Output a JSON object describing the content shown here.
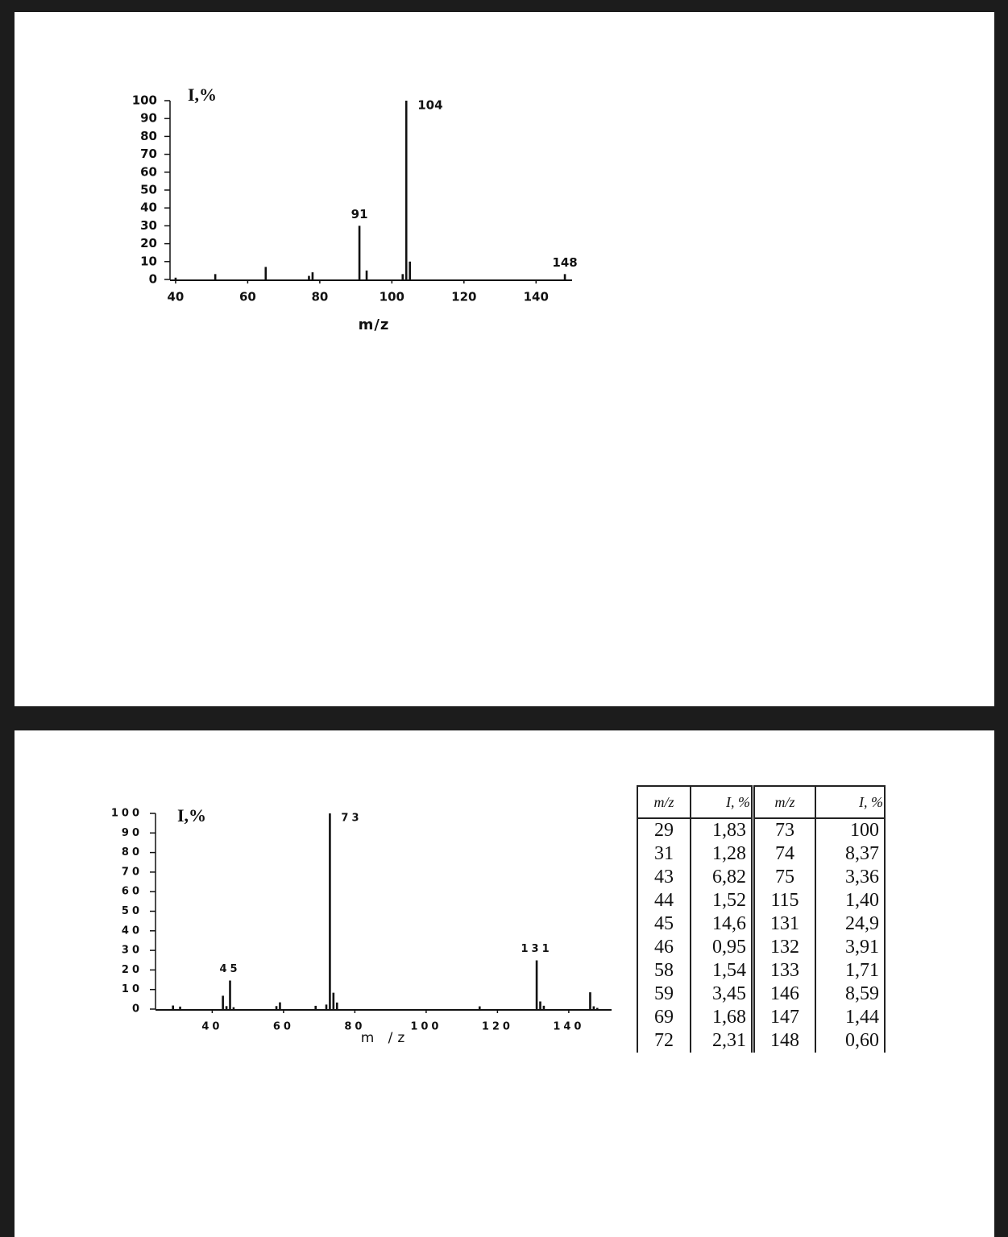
{
  "chart_data": [
    {
      "type": "bar",
      "y_label": "I,%",
      "x_label": "m/z",
      "x": [
        40,
        51,
        65,
        77,
        78,
        91,
        93,
        103,
        104,
        105,
        148
      ],
      "values": [
        1,
        3,
        7,
        2,
        4,
        30,
        5,
        3,
        100,
        10,
        3
      ],
      "peak_labels": [
        104,
        91,
        148
      ],
      "color": "#111111",
      "xlim": [
        38,
        150
      ],
      "xticks": [
        40,
        60,
        80,
        100,
        120,
        140
      ],
      "ylim": [
        0,
        100
      ],
      "yticks": [
        0,
        10,
        20,
        30,
        40,
        50,
        60,
        70,
        80,
        90,
        100
      ]
    },
    {
      "type": "bar",
      "y_label": "I,%",
      "x_label": "m /z",
      "x": [
        29,
        31,
        43,
        44,
        45,
        46,
        58,
        59,
        69,
        72,
        73,
        74,
        75,
        115,
        131,
        132,
        133,
        146,
        147,
        148
      ],
      "values": [
        1.83,
        1.28,
        6.82,
        1.52,
        14.6,
        0.95,
        1.54,
        3.45,
        1.68,
        2.31,
        100,
        8.37,
        3.36,
        1.4,
        24.9,
        3.91,
        1.71,
        8.59,
        1.44,
        0.6
      ],
      "peak_labels": [
        45,
        73,
        131
      ],
      "color": "#111111",
      "xlim": [
        25,
        152
      ],
      "xticks": [
        40,
        60,
        80,
        100,
        120,
        140
      ],
      "ylim": [
        0,
        100
      ],
      "yticks": [
        0,
        10,
        20,
        30,
        40,
        50,
        60,
        70,
        80,
        90,
        100
      ]
    }
  ],
  "table": {
    "header": [
      "m/z",
      "I, %",
      "m/z",
      "I, %"
    ],
    "rows": [
      [
        "29",
        "1,83",
        "73",
        "100"
      ],
      [
        "31",
        "1,28",
        "74",
        "8,37"
      ],
      [
        "43",
        "6,82",
        "75",
        "3,36"
      ],
      [
        "44",
        "1,52",
        "115",
        "1,40"
      ],
      [
        "45",
        "14,6",
        "131",
        "24,9"
      ],
      [
        "46",
        "0,95",
        "132",
        "3,91"
      ],
      [
        "58",
        "1,54",
        "133",
        "1,71"
      ],
      [
        "59",
        "3,45",
        "146",
        "8,59"
      ],
      [
        "69",
        "1,68",
        "147",
        "1,44"
      ],
      [
        "72",
        "2,31",
        "148",
        "0,60"
      ]
    ]
  }
}
